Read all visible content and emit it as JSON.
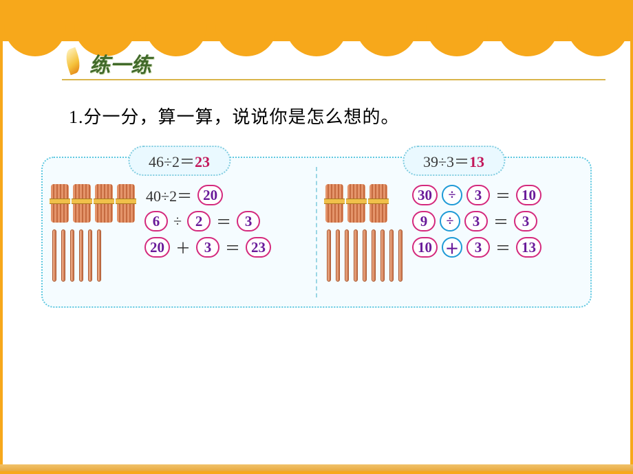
{
  "title": "练一练",
  "question": "1.分一分，算一算，说说你是怎么想的。",
  "colors": {
    "frame": "#f7a81b",
    "panel_border": "#5fc8e0",
    "panel_bg": "#f5fcff",
    "capsule_border": "#d4297d",
    "circle_border": "#1e9ad6",
    "answer_text": "#c2185b",
    "title_text": "#416a2a"
  },
  "panels": [
    {
      "header": {
        "expr": "46÷2＝",
        "answer": "23"
      },
      "bundles": 4,
      "loose_sticks": 6,
      "equations": [
        {
          "parts": [
            {
              "type": "fixed",
              "text": "40÷2＝"
            },
            {
              "type": "capsule",
              "text": "20"
            }
          ]
        },
        {
          "parts": [
            {
              "type": "capsule",
              "text": "6"
            },
            {
              "type": "fixed",
              "text": "÷"
            },
            {
              "type": "capsule",
              "text": "2"
            },
            {
              "type": "fixed",
              "text": "＝"
            },
            {
              "type": "capsule",
              "text": "3"
            }
          ]
        },
        {
          "parts": [
            {
              "type": "capsule",
              "text": "20"
            },
            {
              "type": "fixed",
              "text": "＋"
            },
            {
              "type": "capsule",
              "text": "3"
            },
            {
              "type": "fixed",
              "text": "＝"
            },
            {
              "type": "capsule",
              "text": "23"
            }
          ]
        }
      ]
    },
    {
      "header": {
        "expr": "39÷3＝",
        "answer": "13"
      },
      "bundles": 3,
      "loose_sticks": 9,
      "equations": [
        {
          "parts": [
            {
              "type": "capsule",
              "text": "30"
            },
            {
              "type": "circle",
              "text": "÷"
            },
            {
              "type": "capsule",
              "text": "3"
            },
            {
              "type": "fixed",
              "text": "＝"
            },
            {
              "type": "capsule",
              "text": "10"
            }
          ]
        },
        {
          "parts": [
            {
              "type": "capsule",
              "text": "9"
            },
            {
              "type": "circle",
              "text": "÷"
            },
            {
              "type": "capsule",
              "text": "3"
            },
            {
              "type": "fixed",
              "text": "＝"
            },
            {
              "type": "capsule",
              "text": "3"
            }
          ]
        },
        {
          "parts": [
            {
              "type": "capsule",
              "text": "10"
            },
            {
              "type": "circle",
              "text": "＋"
            },
            {
              "type": "capsule",
              "text": "3"
            },
            {
              "type": "fixed",
              "text": "＝"
            },
            {
              "type": "capsule",
              "text": "13"
            }
          ]
        }
      ]
    }
  ]
}
